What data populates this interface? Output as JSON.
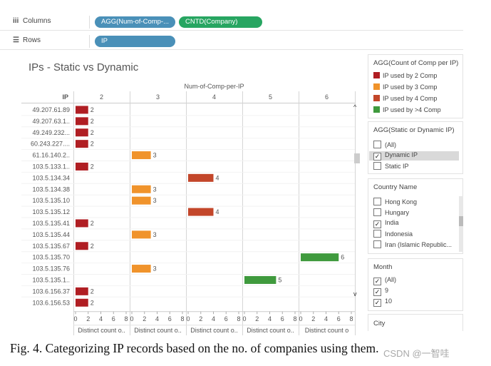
{
  "shelves": {
    "columns": {
      "icon": "iii",
      "label": "Columns",
      "pills": [
        {
          "text": "AGG(Num-of-Comp-...",
          "color": "#4a90b8"
        },
        {
          "text": "CNTD(Company)",
          "color": "#27a561"
        }
      ]
    },
    "rows": {
      "icon": "☰",
      "label": "Rows",
      "pills": [
        {
          "text": "IP",
          "color": "#4a90b8"
        }
      ]
    }
  },
  "view": {
    "title": "IPs - Static vs Dynamic",
    "column_header": "Num-of-Comp-per-IP",
    "row_header": "IP"
  },
  "chart_data": {
    "type": "bar",
    "panel_header": "Num-of-Comp-per-IP",
    "panels": [
      "2",
      "3",
      "4",
      "5",
      "6"
    ],
    "panel_axis_ticks": [
      "0",
      "2",
      "4",
      "6",
      "8"
    ],
    "panel_axis_max": 8,
    "panel_axis_title": "Distinct count o..",
    "panel_axis_titles": [
      "Distinct count o..",
      "Distinct count o..",
      "Distinct count o..",
      "Distinct count o..",
      "Distinct count o"
    ],
    "rows": [
      {
        "ip": "49.207.61.89",
        "value": 2,
        "panel": 0
      },
      {
        "ip": "49.207.63.1..",
        "value": 2,
        "panel": 0
      },
      {
        "ip": "49.249.232...",
        "value": 2,
        "panel": 0
      },
      {
        "ip": "60.243.227....",
        "value": 2,
        "panel": 0
      },
      {
        "ip": "61.16.140.2..",
        "value": 3,
        "panel": 1
      },
      {
        "ip": "103.5.133.1..",
        "value": 2,
        "panel": 0
      },
      {
        "ip": "103.5.134.34",
        "value": 4,
        "panel": 2
      },
      {
        "ip": "103.5.134.38",
        "value": 3,
        "panel": 1
      },
      {
        "ip": "103.5.135.10",
        "value": 3,
        "panel": 1
      },
      {
        "ip": "103.5.135.12",
        "value": 4,
        "panel": 2
      },
      {
        "ip": "103.5.135.41",
        "value": 2,
        "panel": 0
      },
      {
        "ip": "103.5.135.44",
        "value": 3,
        "panel": 1
      },
      {
        "ip": "103.5.135.67",
        "value": 2,
        "panel": 0
      },
      {
        "ip": "103.5.135.70",
        "value": 6,
        "panel": 4
      },
      {
        "ip": "103.5.135.76",
        "value": 3,
        "panel": 1
      },
      {
        "ip": "103.5.135.1..",
        "value": 5,
        "panel": 3
      },
      {
        "ip": "103.6.156.37",
        "value": 2,
        "panel": 0
      },
      {
        "ip": "103.6.156.53",
        "value": 2,
        "panel": 0
      }
    ],
    "colors": {
      "2": "#b01e23",
      "3": "#f0932b",
      "4": "#c3462a",
      "5": "#3f9a3d",
      "6": "#3f9a3d"
    }
  },
  "legend": {
    "title": "AGG(Count of Comp per IP)",
    "items": [
      {
        "label": "IP used by 2 Comp",
        "color": "#b01e23"
      },
      {
        "label": "IP used by 3 Comp",
        "color": "#f0932b"
      },
      {
        "label": "IP used by 4 Comp",
        "color": "#c3462a"
      },
      {
        "label": "IP used by >4 Comp",
        "color": "#3f9a3d"
      }
    ]
  },
  "filter_static": {
    "title": "AGG(Static or Dynamic IP)",
    "items": [
      {
        "label": "(All)",
        "checked": false,
        "selected": false
      },
      {
        "label": "Dynamic IP",
        "checked": true,
        "selected": true
      },
      {
        "label": "Static IP",
        "checked": false,
        "selected": false
      }
    ]
  },
  "filter_country": {
    "title": "Country Name",
    "items": [
      {
        "label": "Hong Kong",
        "checked": false
      },
      {
        "label": "Hungary",
        "checked": false
      },
      {
        "label": "India",
        "checked": true
      },
      {
        "label": "Indonesia",
        "checked": false
      },
      {
        "label": "Iran (Islamic Republic...",
        "checked": false
      }
    ]
  },
  "filter_month": {
    "title": "Month",
    "items": [
      {
        "label": "(All)",
        "checked": true
      },
      {
        "label": "9",
        "checked": true
      },
      {
        "label": "10",
        "checked": true
      }
    ]
  },
  "filter_city": {
    "title": "City"
  },
  "caption": "Fig. 4.   Categorizing IP records based on the no. of companies using them.",
  "watermark": "CSDN @一智哇"
}
